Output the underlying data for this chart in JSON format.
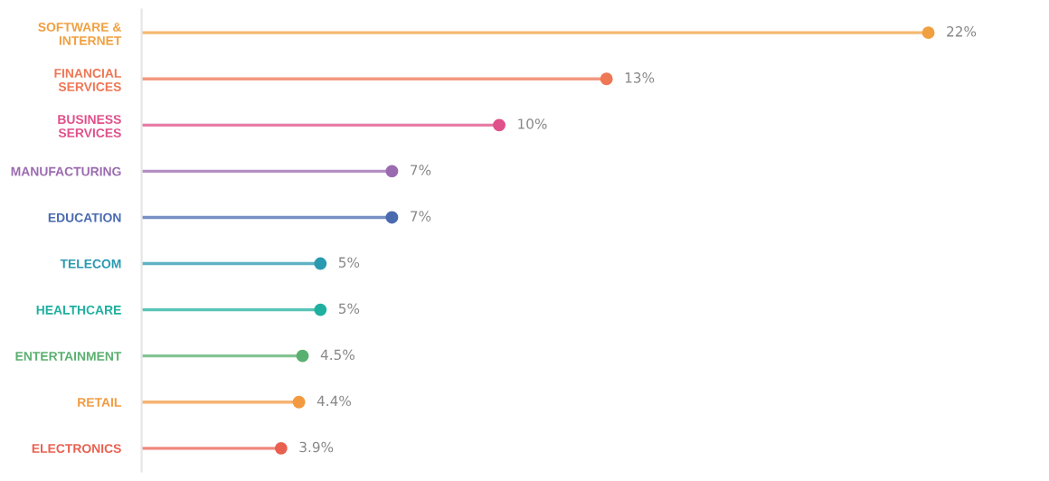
{
  "chart_data": {
    "type": "lollipop",
    "orientation": "horizontal",
    "marker": "circle",
    "grid": false,
    "legend": false,
    "tick_labels": "y",
    "categories": [
      "SOFTWARE &\nINTERNET",
      "FINANCIAL\nSERVICES",
      "BUSINESS\nSERVICES",
      "MANUFACTURING",
      "EDUCATION",
      "TELECOM",
      "HEALTHCARE",
      "ENTERTAINMENT",
      "RETAIL",
      "ELECTRONICS"
    ],
    "values": [
      22,
      13,
      10,
      7,
      7,
      5,
      5,
      4.5,
      4.4,
      3.9
    ],
    "value_labels": [
      "22%",
      "13%",
      "10%",
      "7%",
      "7%",
      "5%",
      "5%",
      "4.5%",
      "4.4%",
      "3.9%"
    ],
    "colors": [
      "#f0a040",
      "#ee7755",
      "#e0508a",
      "#9b6bb0",
      "#4a6ab0",
      "#2a9ab0",
      "#20b0a0",
      "#5ab070",
      "#f39a40",
      "#ea6050"
    ]
  }
}
